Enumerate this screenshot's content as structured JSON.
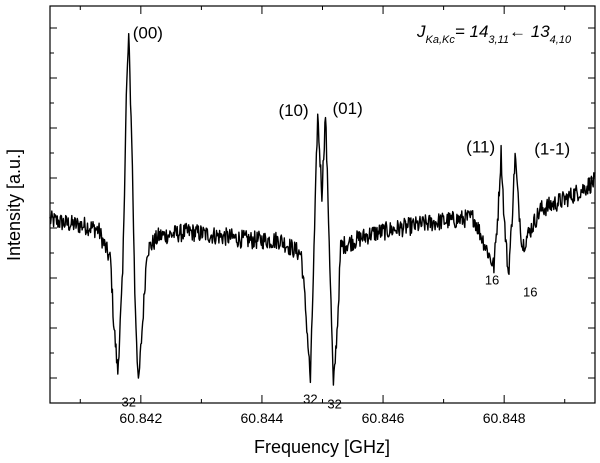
{
  "chart_data": {
    "type": "line",
    "title": "",
    "xlabel": "Frequency [GHz]",
    "ylabel": "Intensity [a.u.]",
    "xlim": [
      60.8405,
      60.8495
    ],
    "ylim": [
      -0.95,
      1.0
    ],
    "x_ticks": [
      60.842,
      60.844,
      60.846,
      60.848
    ],
    "x_tick_labels": [
      "60.842",
      "60.844",
      "60.846",
      "60.848"
    ],
    "y_tick_labels_shown": false,
    "grid": false,
    "series": [
      {
        "points": [
          [
            60.8405,
            -0.05
          ],
          [
            60.8408,
            -0.07
          ],
          [
            60.8411,
            -0.08
          ],
          [
            60.8413,
            -0.1
          ],
          [
            60.8415,
            -0.25
          ],
          [
            60.84155,
            -0.55
          ],
          [
            60.84162,
            -0.8
          ],
          [
            60.8417,
            -0.32
          ],
          [
            60.84176,
            0.55
          ],
          [
            60.8418,
            0.85
          ],
          [
            60.84185,
            0.35
          ],
          [
            60.8419,
            -0.4
          ],
          [
            60.84196,
            -0.87
          ],
          [
            60.84203,
            -0.55
          ],
          [
            60.8421,
            -0.2
          ],
          [
            60.8423,
            -0.13
          ],
          [
            60.8428,
            -0.11
          ],
          [
            60.8433,
            -0.13
          ],
          [
            60.8438,
            -0.15
          ],
          [
            60.8443,
            -0.15
          ],
          [
            60.84465,
            -0.22
          ],
          [
            60.84472,
            -0.48
          ],
          [
            60.8448,
            -0.84
          ],
          [
            60.84487,
            -0.1
          ],
          [
            60.84492,
            0.46
          ],
          [
            60.84499,
            0.08
          ],
          [
            60.84505,
            0.47
          ],
          [
            60.84511,
            -0.15
          ],
          [
            60.84518,
            -0.88
          ],
          [
            60.84525,
            -0.55
          ],
          [
            60.8453,
            -0.18
          ],
          [
            60.8458,
            -0.12
          ],
          [
            60.8463,
            -0.09
          ],
          [
            60.8469,
            -0.06
          ],
          [
            60.8475,
            -0.04
          ],
          [
            60.84783,
            -0.28
          ],
          [
            60.8479,
            -0.01
          ],
          [
            60.84795,
            0.28
          ],
          [
            60.848,
            -0.05
          ],
          [
            60.84807,
            -0.32
          ],
          [
            60.84813,
            -0.05
          ],
          [
            60.84818,
            0.27
          ],
          [
            60.84823,
            0.05
          ],
          [
            60.8483,
            -0.18
          ],
          [
            60.8486,
            0.0
          ],
          [
            60.849,
            0.05
          ],
          [
            60.8493,
            0.1
          ],
          [
            60.8495,
            0.14
          ]
        ]
      }
    ],
    "peak_labels": [
      {
        "text": "(00)",
        "x": 60.8418,
        "y": 0.85
      },
      {
        "text": "(10)",
        "x": 60.8449,
        "y": 0.46
      },
      {
        "text": "(01)",
        "x": 60.845,
        "y": 0.47
      },
      {
        "text": "(11)",
        "x": 60.848,
        "y": 0.28
      },
      {
        "text": "(1-1)",
        "x": 60.8482,
        "y": 0.27
      }
    ],
    "dip_labels": [
      {
        "text": "32",
        "x": 60.8418,
        "y": -0.87
      },
      {
        "text": "32",
        "x": 60.8448,
        "y": -0.84
      },
      {
        "text": "32",
        "x": 60.8452,
        "y": -0.88
      },
      {
        "text": "16",
        "x": 60.8478,
        "y": -0.28
      },
      {
        "text": "16",
        "x": 60.8481,
        "y": -0.32
      }
    ],
    "annotation": {
      "J": "J",
      "J_sub": "Ka,Kc",
      "eq": "= 14",
      "sub1": "3,11",
      "arrow": "← 13",
      "sub2": "4,10"
    }
  }
}
